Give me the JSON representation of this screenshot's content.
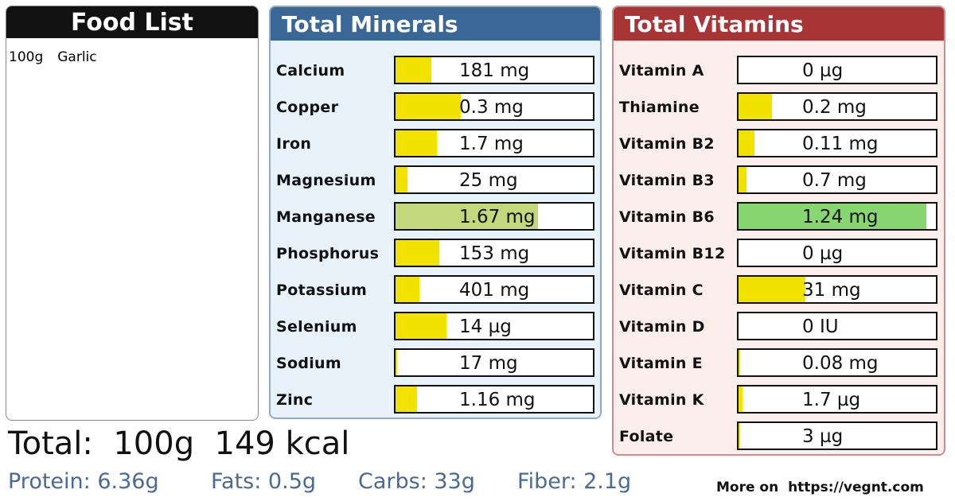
{
  "food_list": {
    "title": "Food List",
    "items": [
      {
        "amount": "100g",
        "name": "Garlic"
      }
    ]
  },
  "minerals": {
    "title": "Total Minerals",
    "header_color": "#3a6796",
    "rows": [
      {
        "label": "Calcium",
        "value": "181 mg",
        "fill": 0.18,
        "color": "#f2e200"
      },
      {
        "label": "Copper",
        "value": "0.3 mg",
        "fill": 0.33,
        "color": "#f2e200"
      },
      {
        "label": "Iron",
        "value": "1.7 mg",
        "fill": 0.21,
        "color": "#f2e200"
      },
      {
        "label": "Magnesium",
        "value": "25 mg",
        "fill": 0.06,
        "color": "#f2e200"
      },
      {
        "label": "Manganese",
        "value": "1.67 mg",
        "fill": 0.72,
        "color": "#c3d77c"
      },
      {
        "label": "Phosphorus",
        "value": "153 mg",
        "fill": 0.22,
        "color": "#f2e200"
      },
      {
        "label": "Potassium",
        "value": "401 mg",
        "fill": 0.12,
        "color": "#f2e200"
      },
      {
        "label": "Selenium",
        "value": "14 µg",
        "fill": 0.26,
        "color": "#f2e200"
      },
      {
        "label": "Sodium",
        "value": "17 mg",
        "fill": 0.01,
        "color": "#f2e200"
      },
      {
        "label": "Zinc",
        "value": "1.16 mg",
        "fill": 0.11,
        "color": "#f2e200"
      }
    ]
  },
  "vitamins": {
    "title": "Total Vitamins",
    "header_color": "#a83535",
    "rows": [
      {
        "label": "Vitamin A",
        "value": "0 µg",
        "fill": 0.0,
        "color": "#f2e200"
      },
      {
        "label": "Thiamine",
        "value": "0.2 mg",
        "fill": 0.17,
        "color": "#f2e200"
      },
      {
        "label": "Vitamin B2",
        "value": "0.11 mg",
        "fill": 0.08,
        "color": "#f2e200"
      },
      {
        "label": "Vitamin B3",
        "value": "0.7 mg",
        "fill": 0.04,
        "color": "#f2e200"
      },
      {
        "label": "Vitamin B6",
        "value": "1.24 mg",
        "fill": 0.95,
        "color": "#88d672"
      },
      {
        "label": "Vitamin B12",
        "value": "0 µg",
        "fill": 0.0,
        "color": "#f2e200"
      },
      {
        "label": "Vitamin C",
        "value": "31 mg",
        "fill": 0.34,
        "color": "#f2e200"
      },
      {
        "label": "Vitamin D",
        "value": "0 IU",
        "fill": 0.0,
        "color": "#f2e200"
      },
      {
        "label": "Vitamin E",
        "value": "0.08 mg",
        "fill": 0.01,
        "color": "#f2e200"
      },
      {
        "label": "Vitamin K",
        "value": "1.7 µg",
        "fill": 0.02,
        "color": "#f2e200"
      },
      {
        "label": "Folate",
        "value": "3 µg",
        "fill": 0.01,
        "color": "#f2e200"
      }
    ]
  },
  "summary": {
    "total_label": "Total:",
    "total_weight": "100g",
    "total_kcal": "149 kcal",
    "protein": "Protein: 6.36g",
    "fats": "Fats: 0.5g",
    "carbs": "Carbs: 33g",
    "fiber": "Fiber: 2.1g"
  },
  "footer": {
    "more_label": "More on",
    "url": "https://vegnt.com"
  }
}
